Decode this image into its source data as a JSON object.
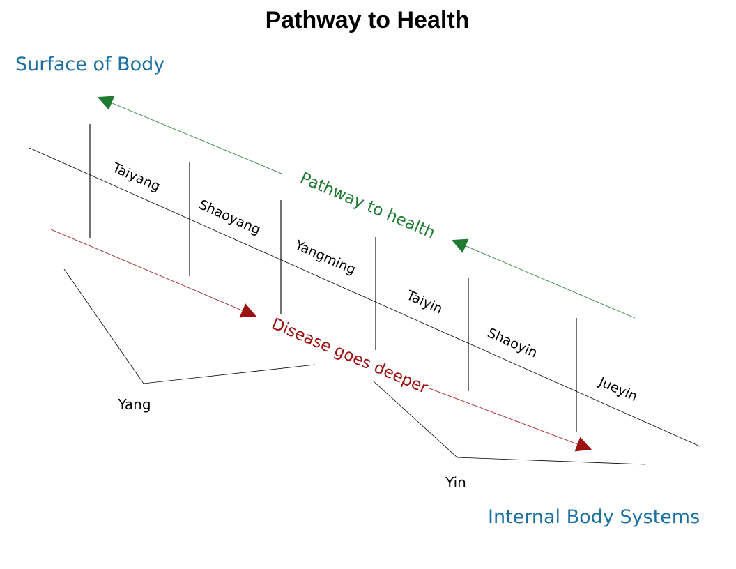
{
  "title": "Pathway to Health",
  "corner_labels": {
    "top_left": "Surface of Body",
    "bottom_right": "Internal Body Systems"
  },
  "stages": [
    "Taiyang",
    "Shaoyang",
    "Yangming",
    "Taiyin",
    "Shaoyin",
    "Jueyin"
  ],
  "groups": {
    "yang": "Yang",
    "yin": "Yin"
  },
  "arrows": {
    "health": "Pathway to health",
    "disease": "Disease goes deeper"
  },
  "colors": {
    "title": "#000000",
    "corner_labels": "#1a6fa0",
    "health_arrow": "#1f7a32",
    "disease_arrow": "#9c1010",
    "lines": "#000000"
  }
}
